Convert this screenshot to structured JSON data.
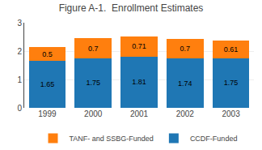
{
  "chart_data": {
    "type": "bar",
    "title": "Figure A-1.  Enrollment Estimates",
    "categories": [
      "1999",
      "2000",
      "2001",
      "2002",
      "2003"
    ],
    "series": [
      {
        "name": "CCDF-Funded",
        "values": [
          1.65,
          1.75,
          1.81,
          1.74,
          1.75
        ]
      },
      {
        "name": "TANF- and SSBG-Funded",
        "values": [
          0.5,
          0.7,
          0.71,
          0.7,
          0.61
        ]
      }
    ],
    "stacked": true,
    "data_labels": true,
    "ylim": [
      0,
      3
    ],
    "yticks": [
      0,
      1,
      2,
      3
    ],
    "grid": true,
    "legend": "bottom"
  }
}
